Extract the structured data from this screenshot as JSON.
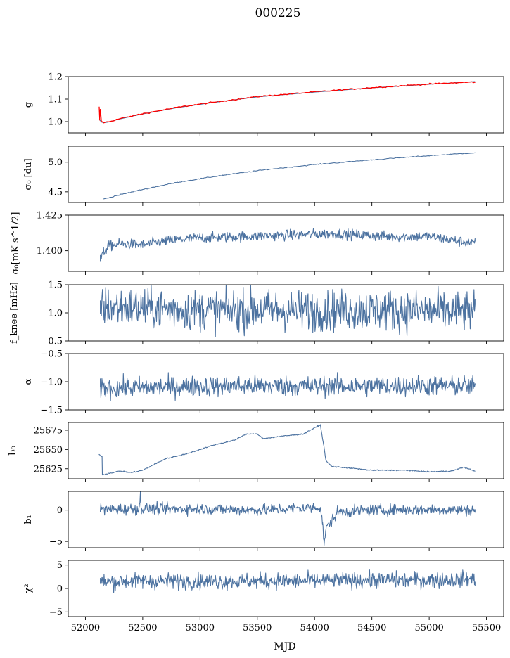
{
  "title": "000225",
  "xlabel": "MJD",
  "xticks": [
    "52000",
    "52500",
    "53000",
    "53500",
    "54000",
    "54500",
    "55000",
    "55500"
  ],
  "colors": {
    "series": "#4c72a0",
    "fit": "#ff0000"
  },
  "chart_data": [
    {
      "type": "line",
      "ylabel": "g",
      "xlim": [
        51850,
        55650
      ],
      "ylim": [
        0.95,
        1.2
      ],
      "yticks": [
        "1.0",
        "1.1",
        "1.2"
      ],
      "series": [
        {
          "x": [
            52120,
            52140,
            52160,
            52200,
            52300,
            52500,
            52800,
            53100,
            53500,
            54000,
            54500,
            55000,
            55400
          ],
          "y": [
            1.01,
            0.998,
            0.995,
            0.998,
            1.012,
            1.034,
            1.062,
            1.084,
            1.11,
            1.131,
            1.15,
            1.166,
            1.178
          ]
        },
        {
          "x": [
            52120,
            52125,
            52130,
            52140,
            52160,
            52200,
            52300,
            52500,
            52800,
            53100,
            53500,
            54000,
            54500,
            55000,
            55400
          ],
          "y": [
            1.065,
            1.005,
            1.055,
            1.0,
            0.996,
            0.999,
            1.013,
            1.035,
            1.063,
            1.085,
            1.111,
            1.132,
            1.151,
            1.167,
            1.176
          ]
        }
      ]
    },
    {
      "type": "line",
      "ylabel": "σ₀ [du]",
      "xlim": [
        51850,
        55650
      ],
      "ylim": [
        4.32,
        5.27
      ],
      "yticks": [
        "4.5",
        "5.0"
      ],
      "series": [
        {
          "x": [
            52160,
            52300,
            52500,
            52800,
            53200,
            53600,
            54000,
            54500,
            55000,
            55400
          ],
          "y": [
            4.38,
            4.45,
            4.54,
            4.66,
            4.78,
            4.88,
            4.96,
            5.04,
            5.11,
            5.16
          ]
        }
      ]
    },
    {
      "type": "line",
      "ylabel": "σ₀[mK s^1/2]",
      "xlim": [
        51850,
        55650
      ],
      "ylim": [
        1.3855,
        1.425
      ],
      "yticks": [
        "1.400",
        "1.425"
      ],
      "series": [
        {
          "x": [
            52130,
            52160,
            52200,
            52300,
            52500,
            52700,
            53000,
            53400,
            53800,
            54200,
            54600,
            55000,
            55400
          ],
          "y": [
            1.394,
            1.399,
            1.403,
            1.405,
            1.404,
            1.407,
            1.409,
            1.41,
            1.411,
            1.412,
            1.41,
            1.41,
            1.405
          ]
        }
      ]
    },
    {
      "type": "line",
      "ylabel": "f_knee [mHz]",
      "xlim": [
        51850,
        55650
      ],
      "ylim": [
        0.5,
        1.5
      ],
      "yticks": [
        "0.5",
        "1.0",
        "1.5"
      ],
      "series": [
        {
          "x": [
            52130,
            52500,
            53000,
            53500,
            54000,
            54500,
            55000,
            55400
          ],
          "y": [
            1.12,
            1.08,
            1.05,
            1.05,
            1.04,
            1.05,
            1.03,
            1.02
          ]
        }
      ]
    },
    {
      "type": "line",
      "ylabel": "α",
      "xlim": [
        51850,
        55650
      ],
      "ylim": [
        -1.5,
        -0.5
      ],
      "yticks": [
        "−1.5",
        "−1.0",
        "−0.5"
      ],
      "series": [
        {
          "x": [
            52130,
            52500,
            53000,
            53500,
            54000,
            54500,
            55000,
            55400
          ],
          "y": [
            -1.12,
            -1.1,
            -1.08,
            -1.07,
            -1.08,
            -1.08,
            -1.07,
            -1.08
          ]
        }
      ]
    },
    {
      "type": "line",
      "ylabel": "b₀",
      "xlim": [
        51850,
        55650
      ],
      "ylim": [
        25612,
        25685
      ],
      "yticks": [
        "25625",
        "25650",
        "25675"
      ],
      "series": [
        {
          "x": [
            52120,
            52145,
            52148,
            52200,
            52300,
            52400,
            52500,
            52700,
            52900,
            53100,
            53300,
            53400,
            53500,
            53550,
            53700,
            53900,
            54050,
            54080,
            54100,
            54150,
            54300,
            54500,
            54800,
            55000,
            55200,
            55300,
            55400
          ],
          "y": [
            25643,
            25641,
            25617,
            25619,
            25622,
            25620,
            25623,
            25638,
            25645,
            25655,
            25662,
            25670,
            25670,
            25664,
            25667,
            25670,
            25682,
            25655,
            25635,
            25628,
            25626,
            25623,
            25623,
            25621,
            25622,
            25627,
            25622
          ]
        }
      ]
    },
    {
      "type": "line",
      "ylabel": "b₁",
      "xlim": [
        51850,
        55650
      ],
      "ylim": [
        -6,
        3
      ],
      "yticks": [
        "−5",
        "0"
      ],
      "series": [
        {
          "x": [
            52130,
            52470,
            52480,
            52490,
            53000,
            53500,
            54000,
            54050,
            54070,
            54080,
            54100,
            54200,
            54500,
            55000,
            55400
          ],
          "y": [
            0.1,
            0.2,
            2.8,
            0.2,
            0.2,
            0.0,
            0.4,
            0.5,
            -2.0,
            -5.3,
            -3.0,
            -0.3,
            0.0,
            0.1,
            0.0
          ]
        }
      ]
    },
    {
      "type": "line",
      "ylabel": "χ²",
      "xlim": [
        51850,
        55650
      ],
      "ylim": [
        -6,
        6
      ],
      "yticks": [
        "−5",
        "0",
        "5"
      ],
      "series": [
        {
          "x": [
            52130,
            52500,
            53000,
            53500,
            54000,
            54500,
            55000,
            55400
          ],
          "y": [
            1.4,
            1.6,
            1.5,
            1.6,
            1.6,
            1.8,
            1.8,
            2.0
          ]
        }
      ]
    }
  ]
}
